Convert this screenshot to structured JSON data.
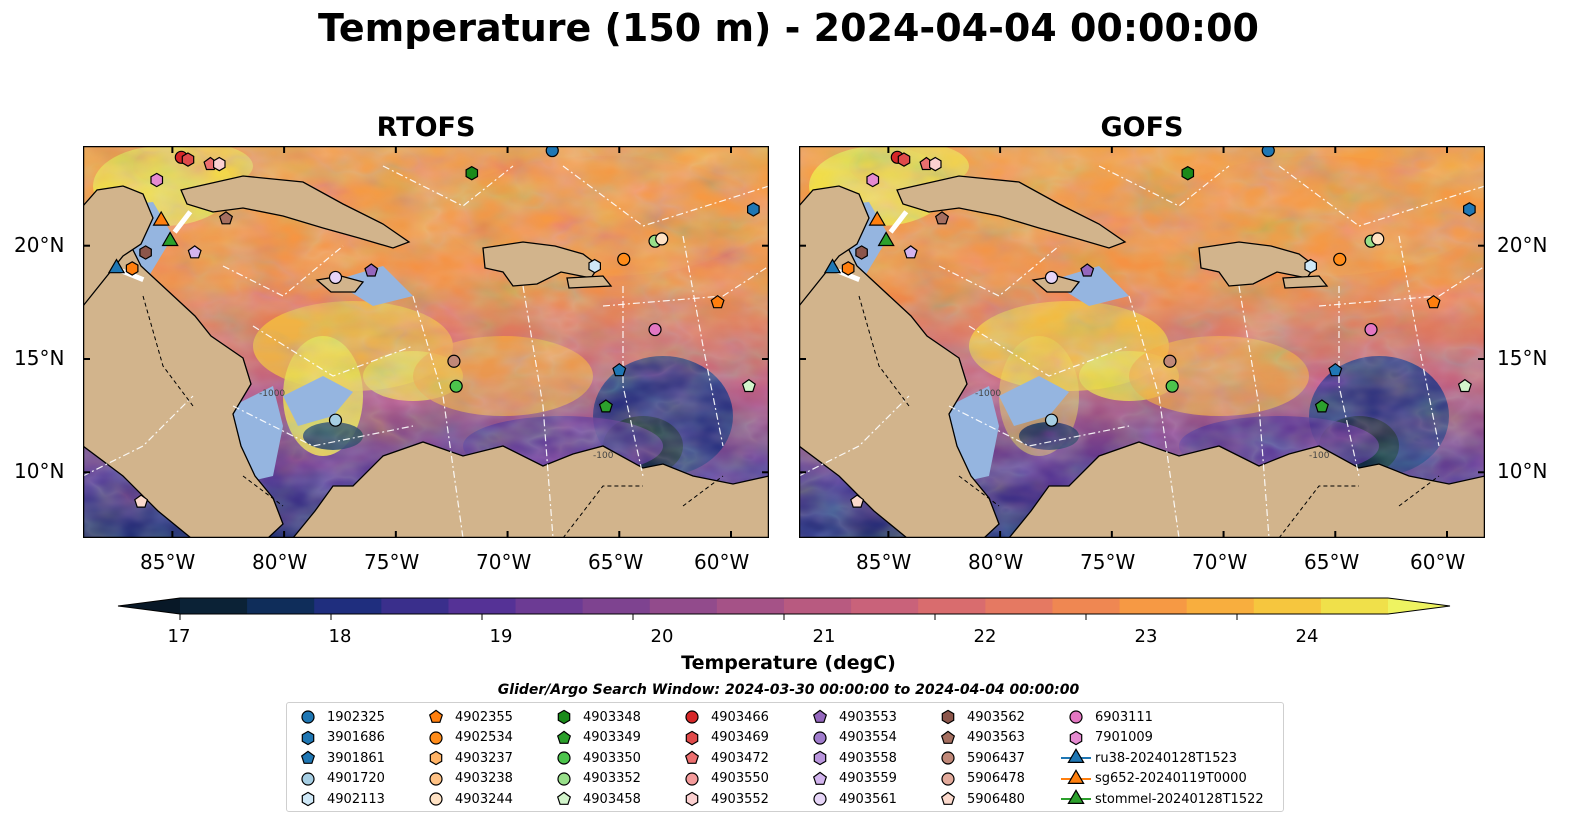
{
  "title": "Temperature (150 m) - 2024-04-04 00:00:00",
  "panels": [
    {
      "name": "rtofs",
      "title": "RTOFS"
    },
    {
      "name": "gofs",
      "title": "GOFS"
    }
  ],
  "axes": {
    "lon_ticks": [
      "85°W",
      "80°W",
      "75°W",
      "70°W",
      "65°W",
      "60°W"
    ],
    "lat_ticks": [
      "20°N",
      "15°N",
      "10°N"
    ]
  },
  "colorbar": {
    "label": "Temperature (degC)",
    "ticks": [
      "17",
      "18",
      "19",
      "20",
      "21",
      "22",
      "23",
      "24"
    ],
    "range": [
      17,
      25
    ],
    "extend": "both",
    "colors": [
      "#0b2236",
      "#0f2d5a",
      "#1f2e7e",
      "#3a2f8c",
      "#553296",
      "#6c3b94",
      "#7e4390",
      "#924b8c",
      "#a55287",
      "#b85a80",
      "#c9627a",
      "#d96c6e",
      "#e57962",
      "#ef8752",
      "#f69944",
      "#f8ae3e",
      "#f6c63e",
      "#f0e04a"
    ],
    "under_color": "#081827",
    "over_color": "#eef361"
  },
  "map_colors": {
    "land": "#d2b48c",
    "shelf": "#95b5e0",
    "sea_mid": "#f59a45"
  },
  "search_window": "Glider/Argo Search Window: 2024-03-30 00:00:00 to 2024-04-04 00:00:00",
  "contour_labels": [
    "-1000",
    "-100"
  ],
  "legend": [
    {
      "label": "1902325",
      "marker": "circle",
      "color": "#1f77b4"
    },
    {
      "label": "3901686",
      "marker": "hexagon",
      "color": "#1f77b4"
    },
    {
      "label": "3901861",
      "marker": "pentagon",
      "color": "#1f77b4"
    },
    {
      "label": "4901720",
      "marker": "circle",
      "color": "#a6cee3"
    },
    {
      "label": "4902113",
      "marker": "hexagon",
      "color": "#cfe8f7"
    },
    {
      "label": "4902355",
      "marker": "pentagon",
      "color": "#ff7f0e"
    },
    {
      "label": "4902534",
      "marker": "circle",
      "color": "#ff8c1a"
    },
    {
      "label": "4903237",
      "marker": "hexagon",
      "color": "#ffb366"
    },
    {
      "label": "4903238",
      "marker": "circle",
      "color": "#ffc285"
    },
    {
      "label": "4903244",
      "marker": "circle",
      "color": "#ffe2c4"
    },
    {
      "label": "4903348",
      "marker": "hexagon",
      "color": "#1a8a1a"
    },
    {
      "label": "4903349",
      "marker": "pentagon",
      "color": "#2ca02c"
    },
    {
      "label": "4903350",
      "marker": "circle",
      "color": "#4cc44c"
    },
    {
      "label": "4903352",
      "marker": "circle",
      "color": "#98df8a"
    },
    {
      "label": "4903458",
      "marker": "pentagon",
      "color": "#d3f5cc"
    },
    {
      "label": "4903466",
      "marker": "circle",
      "color": "#d62728"
    },
    {
      "label": "4903469",
      "marker": "hexagon",
      "color": "#e04a4a"
    },
    {
      "label": "4903472",
      "marker": "pentagon",
      "color": "#ec6f6f"
    },
    {
      "label": "4903550",
      "marker": "circle",
      "color": "#f49b9b"
    },
    {
      "label": "4903552",
      "marker": "hexagon",
      "color": "#fbd0d0"
    },
    {
      "label": "4903553",
      "marker": "pentagon",
      "color": "#9467bd"
    },
    {
      "label": "4903554",
      "marker": "circle",
      "color": "#a07ccc"
    },
    {
      "label": "4903558",
      "marker": "hexagon",
      "color": "#b995dc"
    },
    {
      "label": "4903559",
      "marker": "pentagon",
      "color": "#d2b4ee"
    },
    {
      "label": "4903561",
      "marker": "circle",
      "color": "#e6d5f7"
    },
    {
      "label": "4903562",
      "marker": "hexagon",
      "color": "#8c564b"
    },
    {
      "label": "4903563",
      "marker": "pentagon",
      "color": "#a56f60"
    },
    {
      "label": "5906437",
      "marker": "circle",
      "color": "#c08878"
    },
    {
      "label": "5906478",
      "marker": "circle",
      "color": "#e2aa9b"
    },
    {
      "label": "5906480",
      "marker": "pentagon",
      "color": "#fbd9cc"
    },
    {
      "label": "6903111",
      "marker": "circle",
      "color": "#e377c2"
    },
    {
      "label": "7901009",
      "marker": "hexagon",
      "color": "#e58ad0"
    },
    {
      "label": "ru38-20240128T1523",
      "marker": "triangle",
      "color": "#1f77b4"
    },
    {
      "label": "sg652-20240119T0000",
      "marker": "triangle",
      "color": "#ff7f0e"
    },
    {
      "label": "stommel-20240128T1522",
      "marker": "triangle",
      "color": "#2ca02c"
    }
  ],
  "floats": [
    {
      "marker": "circle",
      "color": "#1f77b4",
      "lon": -68.0,
      "lat": 24.2
    },
    {
      "marker": "hexagon",
      "color": "#1f77b4",
      "lon": -59.0,
      "lat": 21.6
    },
    {
      "marker": "pentagon",
      "color": "#1f77b4",
      "lon": -65.0,
      "lat": 14.5
    },
    {
      "marker": "circle",
      "color": "#a6cee3",
      "lon": -77.7,
      "lat": 12.3
    },
    {
      "marker": "hexagon",
      "color": "#cfe8f7",
      "lon": -66.1,
      "lat": 19.1
    },
    {
      "marker": "pentagon",
      "color": "#ff7f0e",
      "lon": -60.6,
      "lat": 17.5
    },
    {
      "marker": "circle",
      "color": "#ff8c1a",
      "lon": -64.8,
      "lat": 19.4
    },
    {
      "marker": "hexagon",
      "color": "#ff7f0e",
      "lon": -86.8,
      "lat": 19.0
    },
    {
      "marker": "circle",
      "color": "#98df8a",
      "lon": -63.4,
      "lat": 20.2
    },
    {
      "marker": "circle",
      "color": "#ffe2c4",
      "lon": -63.1,
      "lat": 20.3
    },
    {
      "marker": "hexagon",
      "color": "#1a8a1a",
      "lon": -71.6,
      "lat": 23.2
    },
    {
      "marker": "pentagon",
      "color": "#2ca02c",
      "lon": -65.6,
      "lat": 12.9
    },
    {
      "marker": "circle",
      "color": "#4cc44c",
      "lon": -72.3,
      "lat": 13.8
    },
    {
      "marker": "pentagon",
      "color": "#d3f5cc",
      "lon": -59.2,
      "lat": 13.8
    },
    {
      "marker": "circle",
      "color": "#d62728",
      "lon": -84.6,
      "lat": 23.9
    },
    {
      "marker": "hexagon",
      "color": "#e04a4a",
      "lon": -84.3,
      "lat": 23.8
    },
    {
      "marker": "pentagon",
      "color": "#ec6f6f",
      "lon": -83.3,
      "lat": 23.6
    },
    {
      "marker": "hexagon",
      "color": "#fbd0d0",
      "lon": -82.9,
      "lat": 23.6
    },
    {
      "marker": "pentagon",
      "color": "#9467bd",
      "lon": -76.1,
      "lat": 18.9
    },
    {
      "marker": "circle",
      "color": "#e6d5f7",
      "lon": -77.7,
      "lat": 18.6
    },
    {
      "marker": "pentagon",
      "color": "#d2b4ee",
      "lon": -84.0,
      "lat": 19.7
    },
    {
      "marker": "hexagon",
      "color": "#8c564b",
      "lon": -86.2,
      "lat": 19.7
    },
    {
      "marker": "pentagon",
      "color": "#a56f60",
      "lon": -82.6,
      "lat": 21.2
    },
    {
      "marker": "circle",
      "color": "#c08878",
      "lon": -72.4,
      "lat": 14.9
    },
    {
      "marker": "pentagon",
      "color": "#fbd9cc",
      "lon": -86.4,
      "lat": 8.7
    },
    {
      "marker": "circle",
      "color": "#e377c2",
      "lon": -63.4,
      "lat": 16.3
    },
    {
      "marker": "hexagon",
      "color": "#e58ad0",
      "lon": -85.7,
      "lat": 22.9
    },
    {
      "marker": "triangle",
      "color": "#1f77b4",
      "lon": -87.5,
      "lat": 19.0
    },
    {
      "marker": "triangle",
      "color": "#ff7f0e",
      "lon": -85.5,
      "lat": 21.1
    },
    {
      "marker": "triangle",
      "color": "#2ca02c",
      "lon": -85.1,
      "lat": 20.2
    }
  ]
}
